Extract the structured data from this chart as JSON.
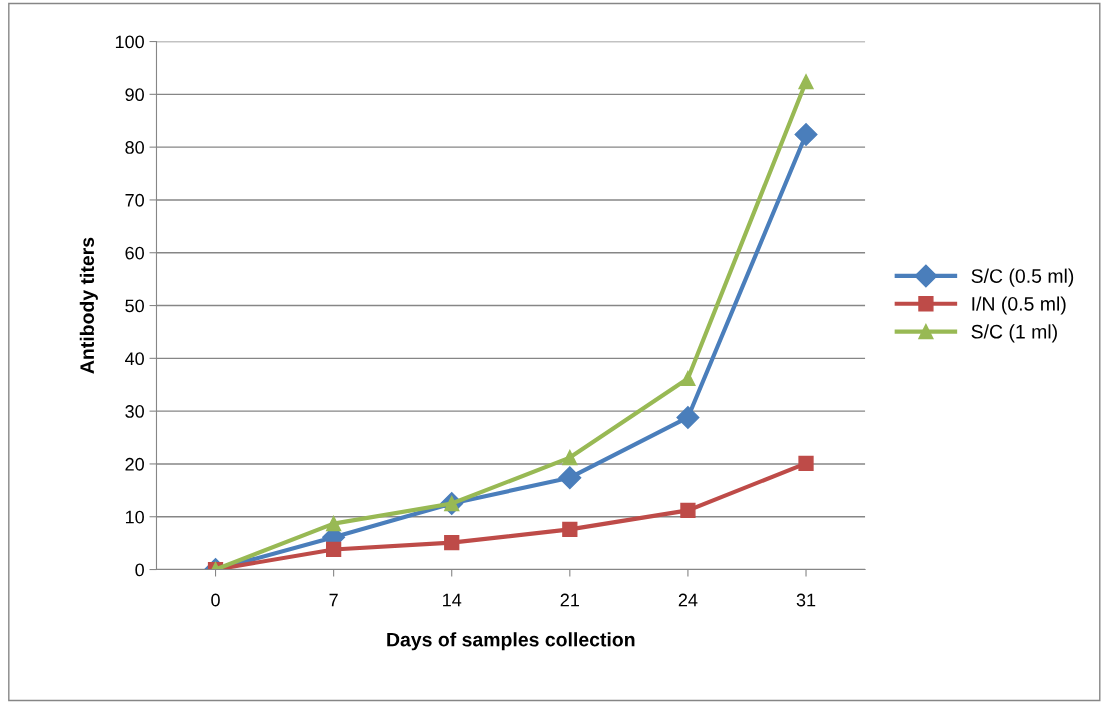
{
  "chart_data": {
    "type": "line",
    "xlabel": "Days of samples collection",
    "ylabel": "Antibody titers",
    "categories": [
      "0",
      "7",
      "14",
      "21",
      "24",
      "31"
    ],
    "series": [
      {
        "name": "S/C (0.5 ml)",
        "color": "#4a7ebb",
        "marker": "diamond",
        "values": [
          0,
          6.1,
          12.5,
          17.4,
          28.8,
          82.4
        ]
      },
      {
        "name": "I/N (0.5 ml)",
        "color": "#be4b48",
        "marker": "square",
        "values": [
          0,
          3.8,
          5.1,
          7.6,
          11.2,
          20.1
        ]
      },
      {
        "name": "S/C (1 ml)",
        "color": "#98b954",
        "marker": "triangle",
        "values": [
          0,
          8.7,
          12.5,
          21.2,
          36.2,
          92.4
        ]
      }
    ],
    "ylim": [
      0,
      100
    ],
    "yticks": [
      0,
      10,
      20,
      30,
      40,
      50,
      60,
      70,
      80,
      90,
      100
    ],
    "grid": "y",
    "legend": "right",
    "line_style": "solid"
  }
}
